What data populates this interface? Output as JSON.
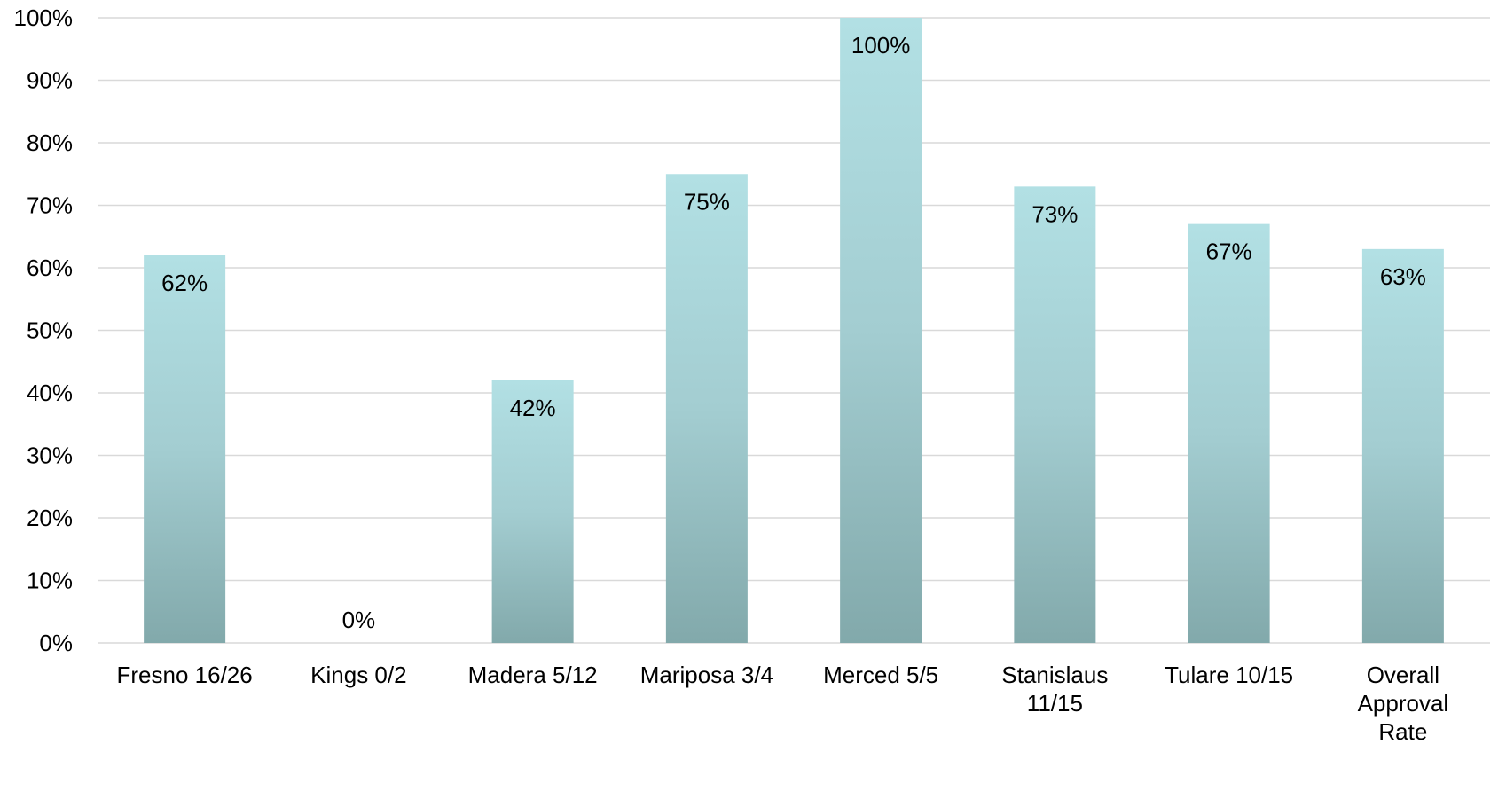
{
  "chart_data": {
    "type": "bar",
    "categories": [
      [
        "Fresno 16/26"
      ],
      [
        "Kings 0/2"
      ],
      [
        "Madera 5/12"
      ],
      [
        "Mariposa 3/4"
      ],
      [
        "Merced 5/5"
      ],
      [
        "Stanislaus",
        "11/15"
      ],
      [
        "Tulare 10/15"
      ],
      [
        "Overall",
        "Approval",
        "Rate"
      ]
    ],
    "values": [
      62,
      0,
      42,
      75,
      100,
      73,
      67,
      63
    ],
    "data_labels": [
      "62%",
      "0%",
      "42%",
      "75%",
      "100%",
      "73%",
      "67%",
      "63%"
    ],
    "ylim": [
      0,
      100
    ],
    "yticks": [
      0,
      10,
      20,
      30,
      40,
      50,
      60,
      70,
      80,
      90,
      100
    ],
    "ytick_labels": [
      "0%",
      "10%",
      "20%",
      "30%",
      "40%",
      "50%",
      "60%",
      "70%",
      "80%",
      "90%",
      "100%"
    ],
    "title": "",
    "xlabel": "",
    "ylabel": "",
    "grid": true,
    "legend": "none",
    "colors": {
      "bar_top": "#b2e0e4",
      "bar_bottom": "#82a9ab",
      "grid": "#d9d9d9",
      "text": "#000000"
    }
  }
}
